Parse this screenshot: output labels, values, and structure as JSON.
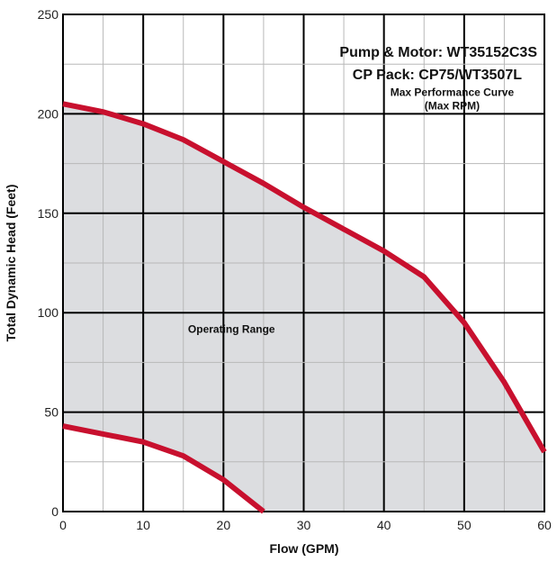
{
  "chart_data": {
    "type": "area",
    "title_lines": [
      "Pump & Motor: WT35152C3S",
      "CP Pack: CP75/WT3507L"
    ],
    "xlabel": "Flow (GPM)",
    "ylabel": "Total Dynamic Head (Feet)",
    "xlim": [
      0,
      60
    ],
    "ylim": [
      0,
      250
    ],
    "x_ticks": [
      0,
      10,
      20,
      30,
      40,
      50,
      60
    ],
    "y_ticks": [
      0,
      50,
      100,
      150,
      200,
      250
    ],
    "grid": true,
    "series": [
      {
        "name": "Max Performance Curve",
        "x": [
          0,
          5,
          10,
          15,
          20,
          25,
          30,
          35,
          40,
          45,
          50,
          55,
          60
        ],
        "y": [
          205,
          201,
          195,
          187,
          176,
          165,
          153,
          142,
          131,
          118,
          95,
          65,
          30
        ]
      },
      {
        "name": "",
        "x": [
          0,
          5,
          10,
          15,
          20,
          25
        ],
        "y": [
          43,
          39,
          35,
          28,
          16,
          0
        ]
      }
    ],
    "annotations": [
      {
        "lines": [
          "Max Performance Curve",
          "(Max RPM)"
        ],
        "x": 48.5,
        "y": 209
      },
      {
        "lines": [
          "Operating Range"
        ],
        "x": 21,
        "y": 90
      }
    ],
    "colors": {
      "curve": "#c8102e",
      "fill": "#dcdde0",
      "grid_major": "#000000",
      "grid_minor": "#b8b8b8"
    }
  }
}
